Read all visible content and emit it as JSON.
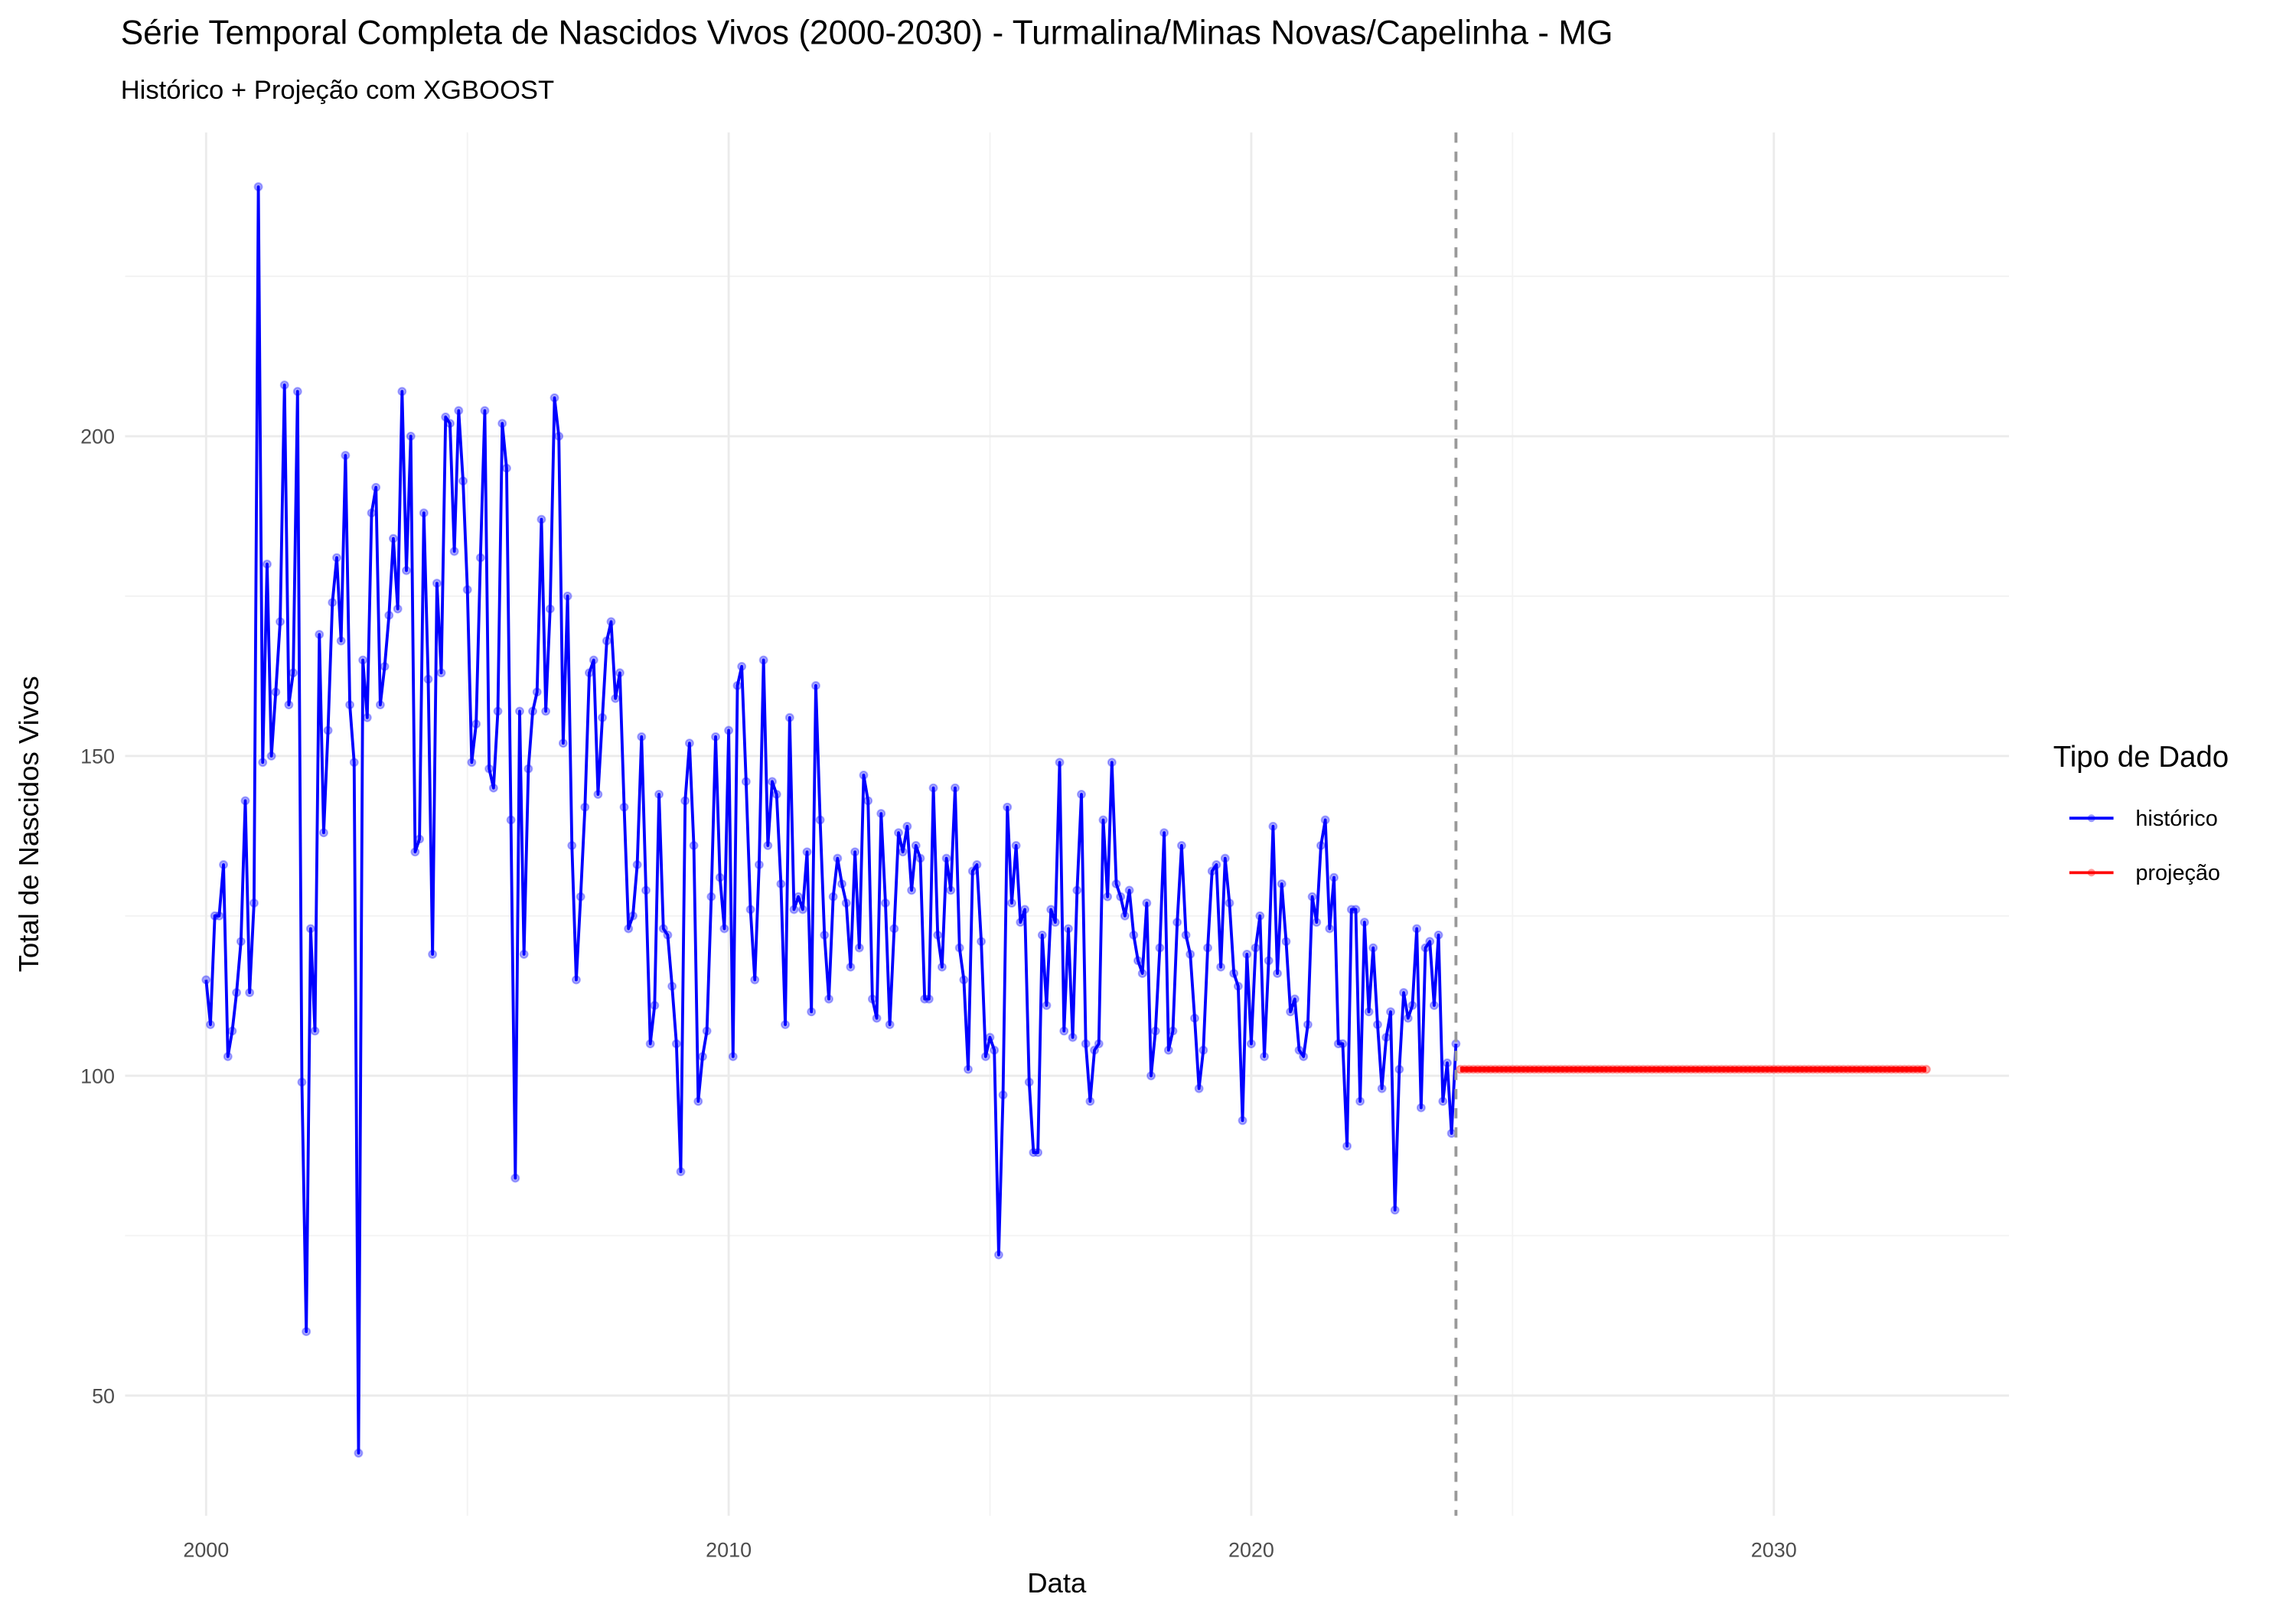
{
  "chart_data": {
    "type": "line",
    "title": "Série Temporal Completa de Nascidos Vivos (2000-2030) -  Turmalina/Minas Novas/Capelinha - MG",
    "subtitle": "Histórico + Projeção com XGBOOST",
    "x_label": "Data",
    "y_label": "Total de Nascidos Vivos",
    "legend_title": "Tipo de Dado",
    "legend_position": "right",
    "xlim": [
      1998.45,
      2034.5
    ],
    "ylim": [
      31.2,
      247.5
    ],
    "xticks": [
      2000,
      2010,
      2020,
      2030
    ],
    "yticks": [
      50,
      100,
      150,
      200
    ],
    "xminor_ticks": [
      2005,
      2015,
      2025
    ],
    "yminor_ticks": [
      75,
      125,
      175,
      225
    ],
    "grid": true,
    "reference_line_x": 2023.917,
    "series": [
      {
        "name": "histórico",
        "color": "#0000ff",
        "x": [
          2000,
          2000.083,
          2000.167,
          2000.25,
          2000.333,
          2000.417,
          2000.5,
          2000.583,
          2000.667,
          2000.75,
          2000.833,
          2000.917,
          2001,
          2001.083,
          2001.167,
          2001.25,
          2001.333,
          2001.417,
          2001.5,
          2001.583,
          2001.667,
          2001.75,
          2001.833,
          2001.917,
          2002,
          2002.083,
          2002.167,
          2002.25,
          2002.333,
          2002.417,
          2002.5,
          2002.583,
          2002.667,
          2002.75,
          2002.833,
          2002.917,
          2003,
          2003.083,
          2003.167,
          2003.25,
          2003.333,
          2003.417,
          2003.5,
          2003.583,
          2003.667,
          2003.75,
          2003.833,
          2003.917,
          2004,
          2004.083,
          2004.167,
          2004.25,
          2004.333,
          2004.417,
          2004.5,
          2004.583,
          2004.667,
          2004.75,
          2004.833,
          2004.917,
          2005,
          2005.083,
          2005.167,
          2005.25,
          2005.333,
          2005.417,
          2005.5,
          2005.583,
          2005.667,
          2005.75,
          2005.833,
          2005.917,
          2006,
          2006.083,
          2006.167,
          2006.25,
          2006.333,
          2006.417,
          2006.5,
          2006.583,
          2006.667,
          2006.75,
          2006.833,
          2006.917,
          2007,
          2007.083,
          2007.167,
          2007.25,
          2007.333,
          2007.417,
          2007.5,
          2007.583,
          2007.667,
          2007.75,
          2007.833,
          2007.917,
          2008,
          2008.083,
          2008.167,
          2008.25,
          2008.333,
          2008.417,
          2008.5,
          2008.583,
          2008.667,
          2008.75,
          2008.833,
          2008.917,
          2009,
          2009.083,
          2009.167,
          2009.25,
          2009.333,
          2009.417,
          2009.5,
          2009.583,
          2009.667,
          2009.75,
          2009.833,
          2009.917,
          2010,
          2010.083,
          2010.167,
          2010.25,
          2010.333,
          2010.417,
          2010.5,
          2010.583,
          2010.667,
          2010.75,
          2010.833,
          2010.917,
          2011,
          2011.083,
          2011.167,
          2011.25,
          2011.333,
          2011.417,
          2011.5,
          2011.583,
          2011.667,
          2011.75,
          2011.833,
          2011.917,
          2012,
          2012.083,
          2012.167,
          2012.25,
          2012.333,
          2012.417,
          2012.5,
          2012.583,
          2012.667,
          2012.75,
          2012.833,
          2012.917,
          2013,
          2013.083,
          2013.167,
          2013.25,
          2013.333,
          2013.417,
          2013.5,
          2013.583,
          2013.667,
          2013.75,
          2013.833,
          2013.917,
          2014,
          2014.083,
          2014.167,
          2014.25,
          2014.333,
          2014.417,
          2014.5,
          2014.583,
          2014.667,
          2014.75,
          2014.833,
          2014.917,
          2015,
          2015.083,
          2015.167,
          2015.25,
          2015.333,
          2015.417,
          2015.5,
          2015.583,
          2015.667,
          2015.75,
          2015.833,
          2015.917,
          2016,
          2016.083,
          2016.167,
          2016.25,
          2016.333,
          2016.417,
          2016.5,
          2016.583,
          2016.667,
          2016.75,
          2016.833,
          2016.917,
          2017,
          2017.083,
          2017.167,
          2017.25,
          2017.333,
          2017.417,
          2017.5,
          2017.583,
          2017.667,
          2017.75,
          2017.833,
          2017.917,
          2018,
          2018.083,
          2018.167,
          2018.25,
          2018.333,
          2018.417,
          2018.5,
          2018.583,
          2018.667,
          2018.75,
          2018.833,
          2018.917,
          2019,
          2019.083,
          2019.167,
          2019.25,
          2019.333,
          2019.417,
          2019.5,
          2019.583,
          2019.667,
          2019.75,
          2019.833,
          2019.917,
          2020,
          2020.083,
          2020.167,
          2020.25,
          2020.333,
          2020.417,
          2020.5,
          2020.583,
          2020.667,
          2020.75,
          2020.833,
          2020.917,
          2021,
          2021.083,
          2021.167,
          2021.25,
          2021.333,
          2021.417,
          2021.5,
          2021.583,
          2021.667,
          2021.75,
          2021.833,
          2021.917,
          2022,
          2022.083,
          2022.167,
          2022.25,
          2022.333,
          2022.417,
          2022.5,
          2022.583,
          2022.667,
          2022.75,
          2022.833,
          2022.917,
          2023,
          2023.083,
          2023.167,
          2023.25,
          2023.333,
          2023.417,
          2023.5,
          2023.583,
          2023.667,
          2023.75,
          2023.833,
          2023.917
        ],
        "values": [
          115,
          108,
          125,
          125,
          133,
          103,
          107,
          113,
          121,
          143,
          113,
          127,
          239,
          149,
          180,
          150,
          160,
          171,
          208,
          158,
          163,
          207,
          99,
          60,
          123,
          107,
          169,
          138,
          154,
          174,
          181,
          168,
          197,
          158,
          149,
          41,
          165,
          156,
          188,
          192,
          158,
          164,
          172,
          184,
          173,
          207,
          179,
          200,
          135,
          137,
          188,
          162,
          119,
          177,
          163,
          203,
          202,
          182,
          204,
          193,
          176,
          149,
          155,
          181,
          204,
          148,
          145,
          157,
          202,
          195,
          140,
          84,
          157,
          119,
          148,
          157,
          160,
          187,
          157,
          173,
          206,
          200,
          152,
          175,
          136,
          115,
          128,
          142,
          163,
          165,
          144,
          156,
          168,
          171,
          159,
          163,
          142,
          123,
          125,
          133,
          153,
          129,
          105,
          111,
          144,
          123,
          122,
          114,
          105,
          85,
          143,
          152,
          136,
          96,
          103,
          107,
          128,
          153,
          131,
          123,
          154,
          103,
          161,
          164,
          146,
          126,
          115,
          133,
          165,
          136,
          146,
          144,
          130,
          108,
          156,
          126,
          128,
          126,
          135,
          110,
          161,
          140,
          122,
          112,
          128,
          134,
          130,
          127,
          117,
          135,
          120,
          147,
          143,
          112,
          109,
          141,
          127,
          108,
          123,
          138,
          135,
          139,
          129,
          136,
          134,
          112,
          112,
          145,
          122,
          117,
          134,
          129,
          145,
          120,
          115,
          101,
          132,
          133,
          121,
          103,
          106,
          104,
          72,
          97,
          142,
          127,
          136,
          124,
          126,
          99,
          88,
          88,
          122,
          111,
          126,
          124,
          149,
          107,
          123,
          106,
          129,
          144,
          105,
          96,
          104,
          105,
          140,
          128,
          149,
          130,
          128,
          125,
          129,
          122,
          118,
          116,
          127,
          100,
          107,
          120,
          138,
          104,
          107,
          124,
          136,
          122,
          119,
          109,
          98,
          104,
          120,
          132,
          133,
          117,
          134,
          127,
          116,
          114,
          93,
          119,
          105,
          120,
          125,
          103,
          118,
          139,
          116,
          130,
          121,
          110,
          112,
          104,
          103,
          108,
          128,
          124,
          136,
          140,
          123,
          131,
          105,
          105,
          89,
          126,
          126,
          96,
          124,
          110,
          120,
          108,
          98,
          106,
          110,
          79,
          101,
          113,
          109,
          111,
          123,
          95,
          120,
          121,
          111,
          122,
          96,
          102,
          91,
          105
        ]
      },
      {
        "name": "projeção",
        "color": "#ff0000",
        "x": [
          2024,
          2024.083,
          2024.167,
          2024.25,
          2024.333,
          2024.417,
          2024.5,
          2024.583,
          2024.667,
          2024.75,
          2024.833,
          2024.917,
          2025,
          2025.083,
          2025.167,
          2025.25,
          2025.333,
          2025.417,
          2025.5,
          2025.583,
          2025.667,
          2025.75,
          2025.833,
          2025.917,
          2026,
          2026.083,
          2026.167,
          2026.25,
          2026.333,
          2026.417,
          2026.5,
          2026.583,
          2026.667,
          2026.75,
          2026.833,
          2026.917,
          2027,
          2027.083,
          2027.167,
          2027.25,
          2027.333,
          2027.417,
          2027.5,
          2027.583,
          2027.667,
          2027.75,
          2027.833,
          2027.917,
          2028,
          2028.083,
          2028.167,
          2028.25,
          2028.333,
          2028.417,
          2028.5,
          2028.583,
          2028.667,
          2028.75,
          2028.833,
          2028.917,
          2029,
          2029.083,
          2029.167,
          2029.25,
          2029.333,
          2029.417,
          2029.5,
          2029.583,
          2029.667,
          2029.75,
          2029.833,
          2029.917,
          2030,
          2030.083,
          2030.167,
          2030.25,
          2030.333,
          2030.417,
          2030.5,
          2030.583,
          2030.667,
          2030.75,
          2030.833,
          2030.917,
          2031,
          2031.083,
          2031.167,
          2031.25,
          2031.333,
          2031.417,
          2031.5,
          2031.583,
          2031.667,
          2031.75,
          2031.833,
          2031.917,
          2032,
          2032.083,
          2032.167,
          2032.25,
          2032.333,
          2032.417,
          2032.5,
          2032.583,
          2032.667,
          2032.75,
          2032.833,
          2032.917
        ],
        "values": [
          101,
          101,
          101,
          101,
          101,
          101,
          101,
          101,
          101,
          101,
          101,
          101,
          101,
          101,
          101,
          101,
          101,
          101,
          101,
          101,
          101,
          101,
          101,
          101,
          101,
          101,
          101,
          101,
          101,
          101,
          101,
          101,
          101,
          101,
          101,
          101,
          101,
          101,
          101,
          101,
          101,
          101,
          101,
          101,
          101,
          101,
          101,
          101,
          101,
          101,
          101,
          101,
          101,
          101,
          101,
          101,
          101,
          101,
          101,
          101,
          101,
          101,
          101,
          101,
          101,
          101,
          101,
          101,
          101,
          101,
          101,
          101,
          101,
          101,
          101,
          101,
          101,
          101,
          101,
          101,
          101,
          101,
          101,
          101,
          101,
          101,
          101,
          101,
          101,
          101,
          101,
          101,
          101,
          101,
          101,
          101,
          101,
          101,
          101,
          101,
          101,
          101,
          101,
          101,
          101,
          101,
          101,
          101
        ]
      }
    ]
  }
}
